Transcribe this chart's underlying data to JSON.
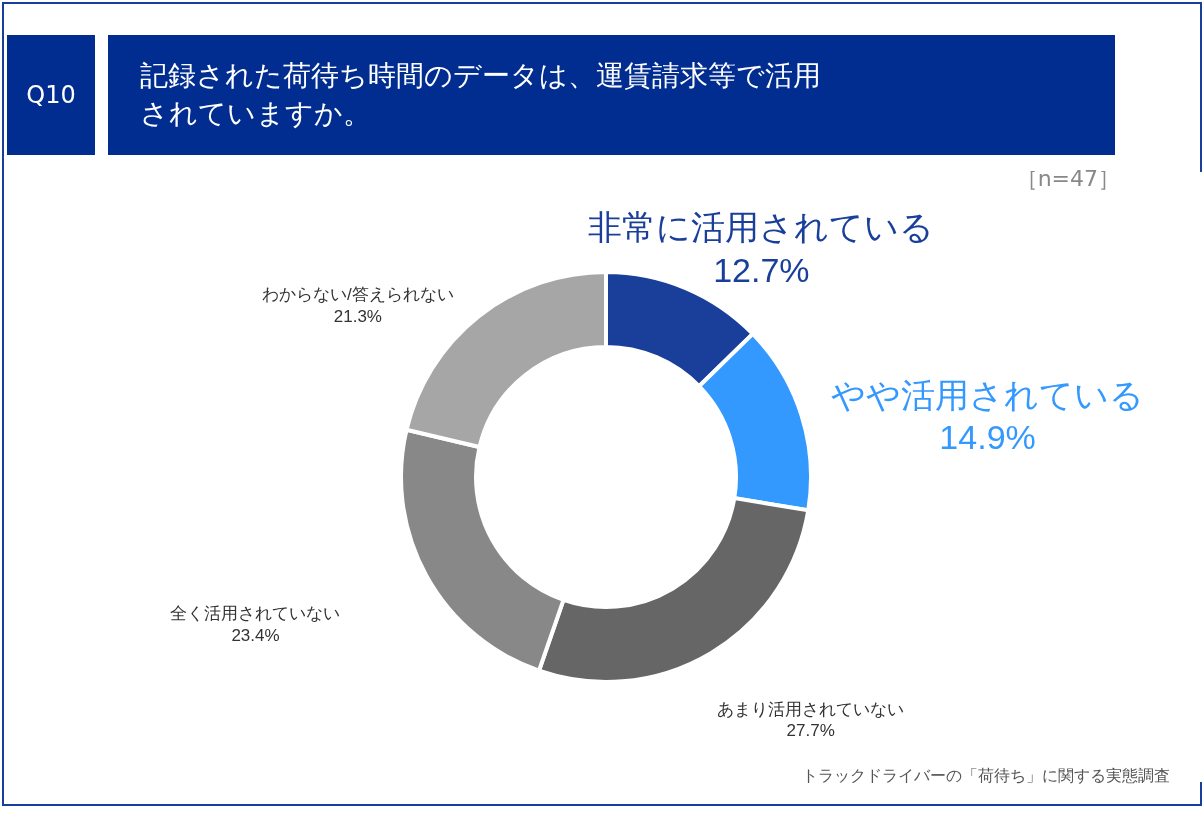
{
  "chart_data": {
    "type": "donut",
    "title": "記録された荷待ち時間のデータは、運賃請求等で活用されていますか。",
    "annotations": [
      "Q10",
      "［n=47］",
      "トラックドライバーの「荷待ち」に関する実態調査"
    ],
    "categories": [
      "非常に活用されている",
      "やや活用されている",
      "あまり活用されていない",
      "全く活用されていない",
      "わからない/答えられない"
    ],
    "values": [
      12.7,
      14.9,
      27.7,
      23.4,
      21.3
    ],
    "colors": [
      "#1a3f9a",
      "#3399ff",
      "#666666",
      "#888888",
      "#a6a6a6"
    ],
    "value_labels": [
      "12.7%",
      "14.9%",
      "27.7%",
      "23.4%",
      "21.3%"
    ]
  }
}
